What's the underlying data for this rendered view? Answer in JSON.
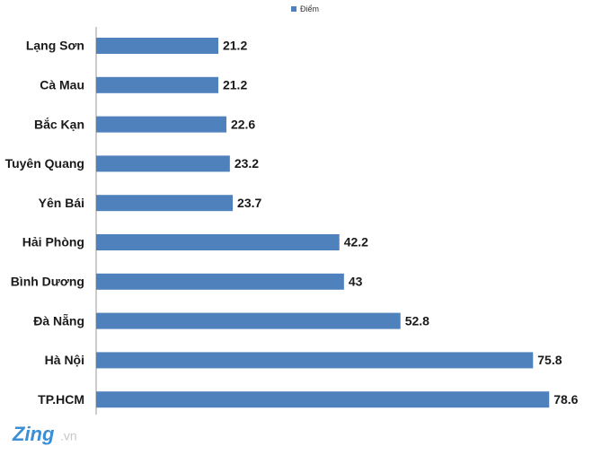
{
  "chart_data": {
    "type": "bar",
    "orientation": "horizontal",
    "legend_position": "top",
    "series": [
      {
        "name": "Điểm",
        "color": "#4f81bd",
        "values": [
          21.2,
          21.2,
          22.6,
          23.2,
          23.7,
          42.2,
          43,
          52.8,
          75.8,
          78.6
        ]
      }
    ],
    "categories": [
      "Lạng Sơn",
      "Cà Mau",
      "Bắc Kạn",
      "Tuyên Quang",
      "Yên Bái",
      "Hải Phòng",
      "Bình Dương",
      "Đà Nẵng",
      "Hà Nội",
      "TP.HCM"
    ]
  },
  "watermark": {
    "brand": "Zing",
    "suffix": ".vn"
  }
}
